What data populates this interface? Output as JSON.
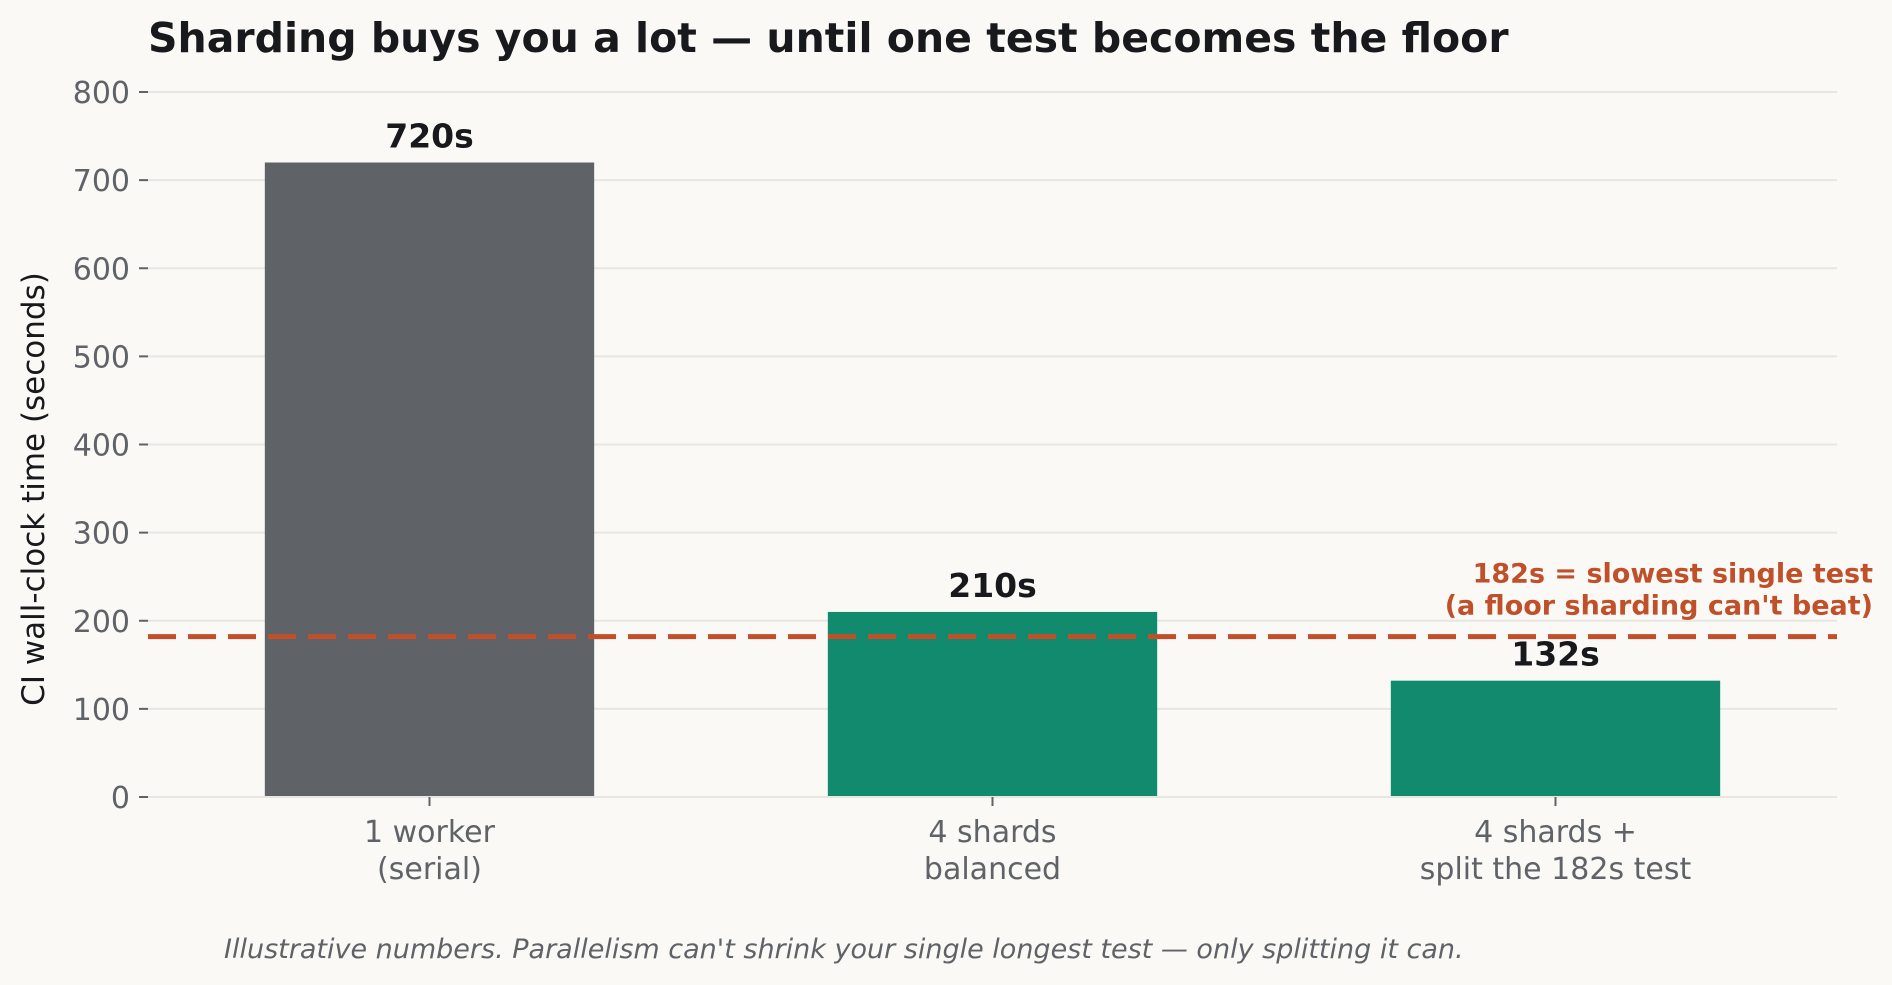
{
  "chart_data": {
    "type": "bar",
    "title": "Sharding buys you a lot — until one test becomes the floor",
    "ylabel": "CI wall-clock time (seconds)",
    "xlabel": "",
    "ylim": [
      0,
      800
    ],
    "yticks": [
      0,
      100,
      200,
      300,
      400,
      500,
      600,
      700,
      800
    ],
    "grid": true,
    "categories": [
      [
        "1 worker",
        "(serial)"
      ],
      [
        "4 shards",
        "balanced"
      ],
      [
        "4 shards +",
        "split the 182s test"
      ]
    ],
    "values": [
      720,
      210,
      132
    ],
    "data_labels": [
      "720s",
      "210s",
      "132s"
    ],
    "bar_colors": [
      "#5f6368",
      "#118a6d",
      "#118a6d"
    ],
    "reference_line": {
      "value": 182,
      "style": "dashed",
      "color": "#c0502a",
      "annotation": [
        "182s = slowest single test",
        "(a floor sharding can't beat)"
      ]
    },
    "footnote": "Illustrative numbers. Parallelism can't shrink your single longest test — only splitting it can."
  }
}
